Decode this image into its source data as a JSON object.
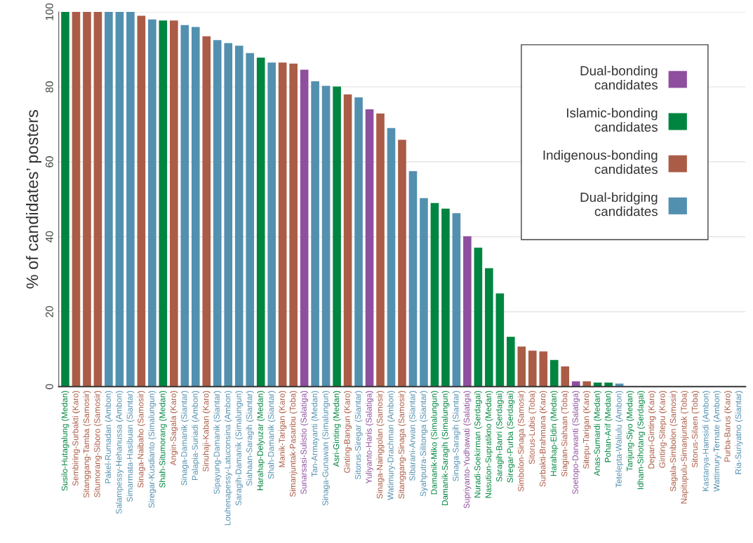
{
  "chart_data": {
    "type": "bar",
    "ylabel": "% of candidates’ posters",
    "categories": [
      "Susilo-Hutagalung (Medan)",
      "Sembiring-Surbakti (Karo)",
      "Sitanggang-Tamba (Samosir)",
      "Situmorang-Siboro (Samosir)",
      "Pakel-Rumadan (Ambon)",
      "Salampessy-Hehanussa (Ambon)",
      "Simarmata-Hasibuan (Siantar)",
      "Sinaga-Naibaho (Samosir)",
      "Siregar-Kusdianto (Simalungun)",
      "Shah-Situmorang (Medan)",
      "Angin-Sagala (Karo)",
      "Sinaga-Damanik (Siantar)",
      "Palapia-Suriadi (Ambon)",
      "Sinuhaji-Kaban (Karo)",
      "Sipayung-Damanik (Siantar)",
      "Louhenapessy-Latuconsina (Ambon)",
      "Saragih-Damanik (Simalungun)",
      "Siahaan-Saragih (Siantar)",
      "Harahap-Delyuzar (Medan)",
      "Shah-Damanik (Siantar)",
      "Manik-Tarigan (Karo)",
      "Simanjuntak-Pasaribu (Toba)",
      "Sunarsasi-Sulistio (Salatiga)",
      "Tan-Armayanti (Medan)",
      "Sinaga-Gunawan (Simalungun)",
      "Asri-Ginting (Medan)",
      "Ginting-Bangun (Karo)",
      "Sitorus-Siregar (Siantar)",
      "Yuliyanto-Haris (Salatiga)",
      "Sinaga-Nainggolan (Samosir)",
      "Watimury-Drachman (Ambon)",
      "Sitanggang-Sinaga (Samosir)",
      "Sibarani-Arwan (Siantar)",
      "Syahputra-Silitonga (Siantar)",
      "Damanik-Miko (Simalungun)",
      "Damanik-Saragih (Simalungun)",
      "Sinaga-Saragih (Siantar)",
      "Supriyanto-Yudhawati (Salatiga)",
      "Nuradi-Soekirman (Serdagai)",
      "Nasution-Supratikno (Medan)",
      "Saragih-Banri (Serdagai)",
      "Siregar-Purba (Serdagai)",
      "Simbolon-Sinaga (Samosir)",
      "Sitorus-Lubis (Toba)",
      "Surbakti-Brahmana (Karo)",
      "Harahap-Eldin (Medan)",
      "Siagian-Siahaan (Toba)",
      "Soetopo-Darwanti (Salatiga)",
      "Sitepu-Tarigan (Karo)",
      "Anas-Sumardi (Medan)",
      "Pohan-Arif (Medan)",
      "Tetelepta-Waliulu (Ambon)",
      "Tanjung-Siyo (Medan)",
      "Idham-Sihotang (Serdagai)",
      "Depari-Ginting (Karo)",
      "Ginting-Sitepu (Karo)",
      "Sagala-Simbolon (Samosir)",
      "Napitupulu-Simanjuntak (Toba)",
      "Sitorus-Silaen (Toba)",
      "Kastanya-Hamsidi (Ambon)",
      "Wattimury-Ternate (Ambon)",
      "Purba-Barus (Karo)",
      "Ria-Suriyatno (Siantar)"
    ],
    "series": [
      {
        "name": "Dual-bonding candidates",
        "color": "#8e4f9e",
        "values": [
          null,
          null,
          null,
          null,
          null,
          null,
          null,
          null,
          null,
          null,
          null,
          null,
          null,
          null,
          null,
          null,
          null,
          null,
          null,
          null,
          null,
          null,
          84.6,
          null,
          null,
          null,
          null,
          null,
          74,
          null,
          null,
          null,
          null,
          null,
          null,
          null,
          null,
          40.1,
          null,
          null,
          null,
          null,
          null,
          null,
          null,
          null,
          null,
          1.4,
          null,
          null,
          null,
          null,
          null,
          null,
          null,
          null,
          null,
          null,
          null,
          null,
          null,
          null,
          null
        ]
      },
      {
        "name": "Islamic-bonding candidates",
        "color": "#008540",
        "values": [
          100,
          null,
          null,
          null,
          null,
          null,
          null,
          null,
          null,
          97.7,
          null,
          null,
          null,
          null,
          null,
          null,
          null,
          null,
          87.8,
          null,
          null,
          null,
          null,
          null,
          null,
          80.1,
          null,
          null,
          null,
          null,
          null,
          null,
          null,
          null,
          49,
          47.5,
          null,
          null,
          37.1,
          31.6,
          24.9,
          13.3,
          null,
          null,
          null,
          7.1,
          null,
          null,
          null,
          1.1,
          1.1,
          null,
          0,
          0,
          null,
          null,
          null,
          null,
          null,
          null,
          null,
          null,
          null
        ]
      },
      {
        "name": "Indigenous-bonding candidates",
        "color": "#ab5c46",
        "values": [
          null,
          100,
          100,
          100,
          null,
          null,
          null,
          99,
          null,
          null,
          97.7,
          null,
          null,
          93.5,
          null,
          null,
          null,
          null,
          null,
          null,
          86.5,
          86.2,
          null,
          null,
          null,
          null,
          78,
          null,
          null,
          72.9,
          null,
          65.9,
          null,
          null,
          null,
          null,
          null,
          null,
          null,
          null,
          null,
          null,
          10.7,
          9.6,
          9.4,
          null,
          5.4,
          null,
          1.4,
          null,
          null,
          null,
          null,
          null,
          0,
          0,
          0,
          0,
          0,
          null,
          null,
          0,
          null
        ]
      },
      {
        "name": "Dual-bridging candidates",
        "color": "#5390b0",
        "values": [
          null,
          null,
          null,
          null,
          100,
          100,
          100,
          null,
          98,
          null,
          null,
          96.5,
          96,
          null,
          92.5,
          91.7,
          91,
          89,
          null,
          86.5,
          null,
          null,
          null,
          81.5,
          80.3,
          null,
          null,
          77.2,
          null,
          null,
          69,
          null,
          57.5,
          50.3,
          null,
          null,
          46.3,
          null,
          null,
          null,
          null,
          null,
          null,
          null,
          null,
          null,
          null,
          null,
          null,
          null,
          null,
          0.8,
          null,
          null,
          null,
          null,
          null,
          null,
          null,
          0,
          0,
          null,
          0
        ]
      }
    ],
    "ylim": [
      0,
      100
    ],
    "yticks": [
      0,
      20,
      40,
      60,
      80,
      100
    ],
    "grid": "y",
    "legend": "top right"
  }
}
